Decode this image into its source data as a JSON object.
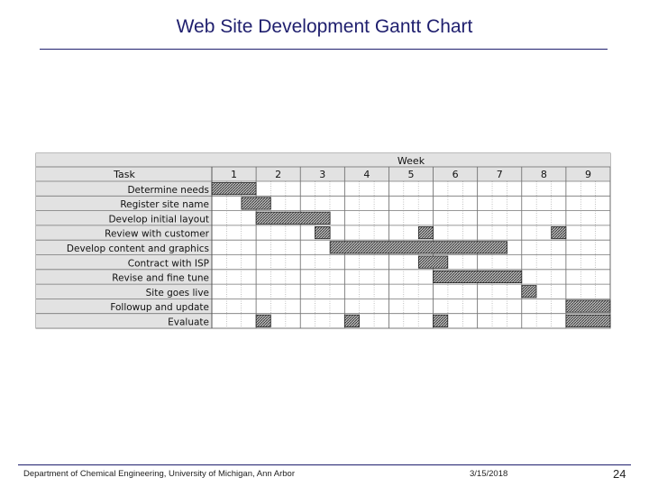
{
  "slide": {
    "title": "Web Site Development Gantt Chart",
    "footer_left": "Department of Chemical Engineering, University of Michigan, Ann Arbor",
    "footer_date": "3/15/2018",
    "page_number": "24"
  },
  "chart_data": {
    "type": "gantt",
    "header_label": "Week",
    "task_column_label": "Task",
    "weeks": [
      "1",
      "2",
      "3",
      "4",
      "5",
      "6",
      "7",
      "8",
      "9"
    ],
    "subdivisions_per_week": 3,
    "tasks": [
      {
        "name": "Determine needs",
        "bars": [
          [
            1.0,
            2.0
          ]
        ]
      },
      {
        "name": "Register site name",
        "bars": [
          [
            1.67,
            2.33
          ]
        ]
      },
      {
        "name": "Develop initial layout",
        "bars": [
          [
            2.0,
            3.67
          ]
        ]
      },
      {
        "name": "Review with customer",
        "bars": [
          [
            3.33,
            3.67
          ],
          [
            5.67,
            6.0
          ],
          [
            8.67,
            9.0
          ]
        ]
      },
      {
        "name": "Develop content and graphics",
        "bars": [
          [
            3.67,
            7.67
          ]
        ]
      },
      {
        "name": "Contract with ISP",
        "bars": [
          [
            5.67,
            6.33
          ]
        ]
      },
      {
        "name": "Revise and fine tune",
        "bars": [
          [
            6.0,
            8.0
          ]
        ]
      },
      {
        "name": "Site goes live",
        "bars": [
          [
            8.0,
            8.33
          ]
        ]
      },
      {
        "name": "Followup and update",
        "bars": [
          [
            9.0,
            10.0
          ]
        ]
      },
      {
        "name": "Evaluate",
        "bars": [
          [
            2.0,
            2.33
          ],
          [
            4.0,
            4.33
          ],
          [
            6.0,
            6.33
          ],
          [
            9.0,
            10.0
          ]
        ]
      }
    ]
  }
}
